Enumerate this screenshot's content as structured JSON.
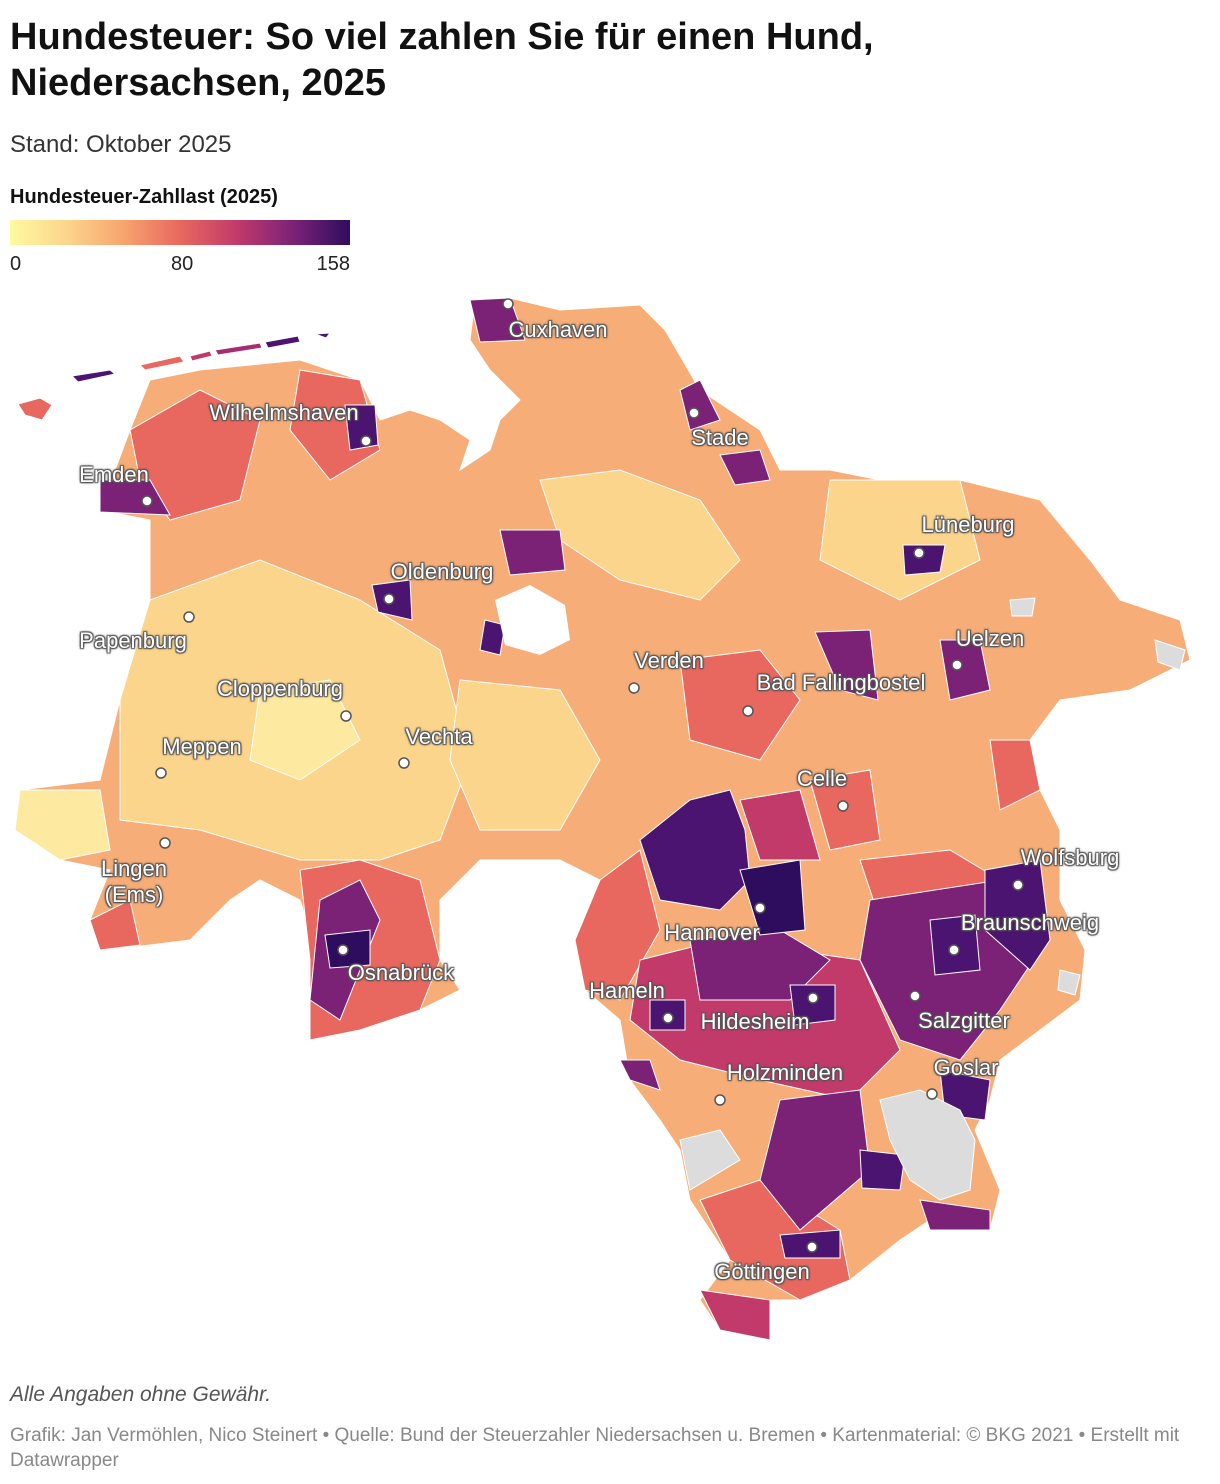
{
  "header": {
    "title": "Hundesteuer: So viel zahlen Sie für einen Hund, Niedersachsen, 2025",
    "subtitle": "Stand: Oktober 2025"
  },
  "legend": {
    "title": "Hundesteuer-Zahllast (2025)",
    "range": [
      0,
      158
    ],
    "ticks": [
      0,
      80,
      158
    ],
    "colors": [
      "#fffaa0",
      "#fcd58c",
      "#f7a46e",
      "#e8685f",
      "#c23a6a",
      "#7b2277",
      "#2e0d5e"
    ]
  },
  "map": {
    "cities": [
      "Cuxhaven",
      "Wilhelmshaven",
      "Stade",
      "Emden",
      "Lüneburg",
      "Oldenburg",
      "Papenburg",
      "Uelzen",
      "Verden",
      "Bad Fallingbostel",
      "Cloppenburg",
      "Vechta",
      "Meppen",
      "Celle",
      "Lingen (Ems)",
      "Wolfsburg",
      "Braunschweig",
      "Hannover",
      "Osnabrück",
      "Hameln",
      "Hildesheim",
      "Salzgitter",
      "Goslar",
      "Holzminden",
      "Göttingen"
    ]
  },
  "footer": {
    "note": "Alle Angaben ohne Gewähr.",
    "credits": "Grafik: Jan Vermöhlen, Nico Steinert • Quelle: Bund der Steuerzahler Niedersachsen u. Bremen • Kartenmaterial: © BKG 2021 • Erstellt mit Datawrapper"
  }
}
